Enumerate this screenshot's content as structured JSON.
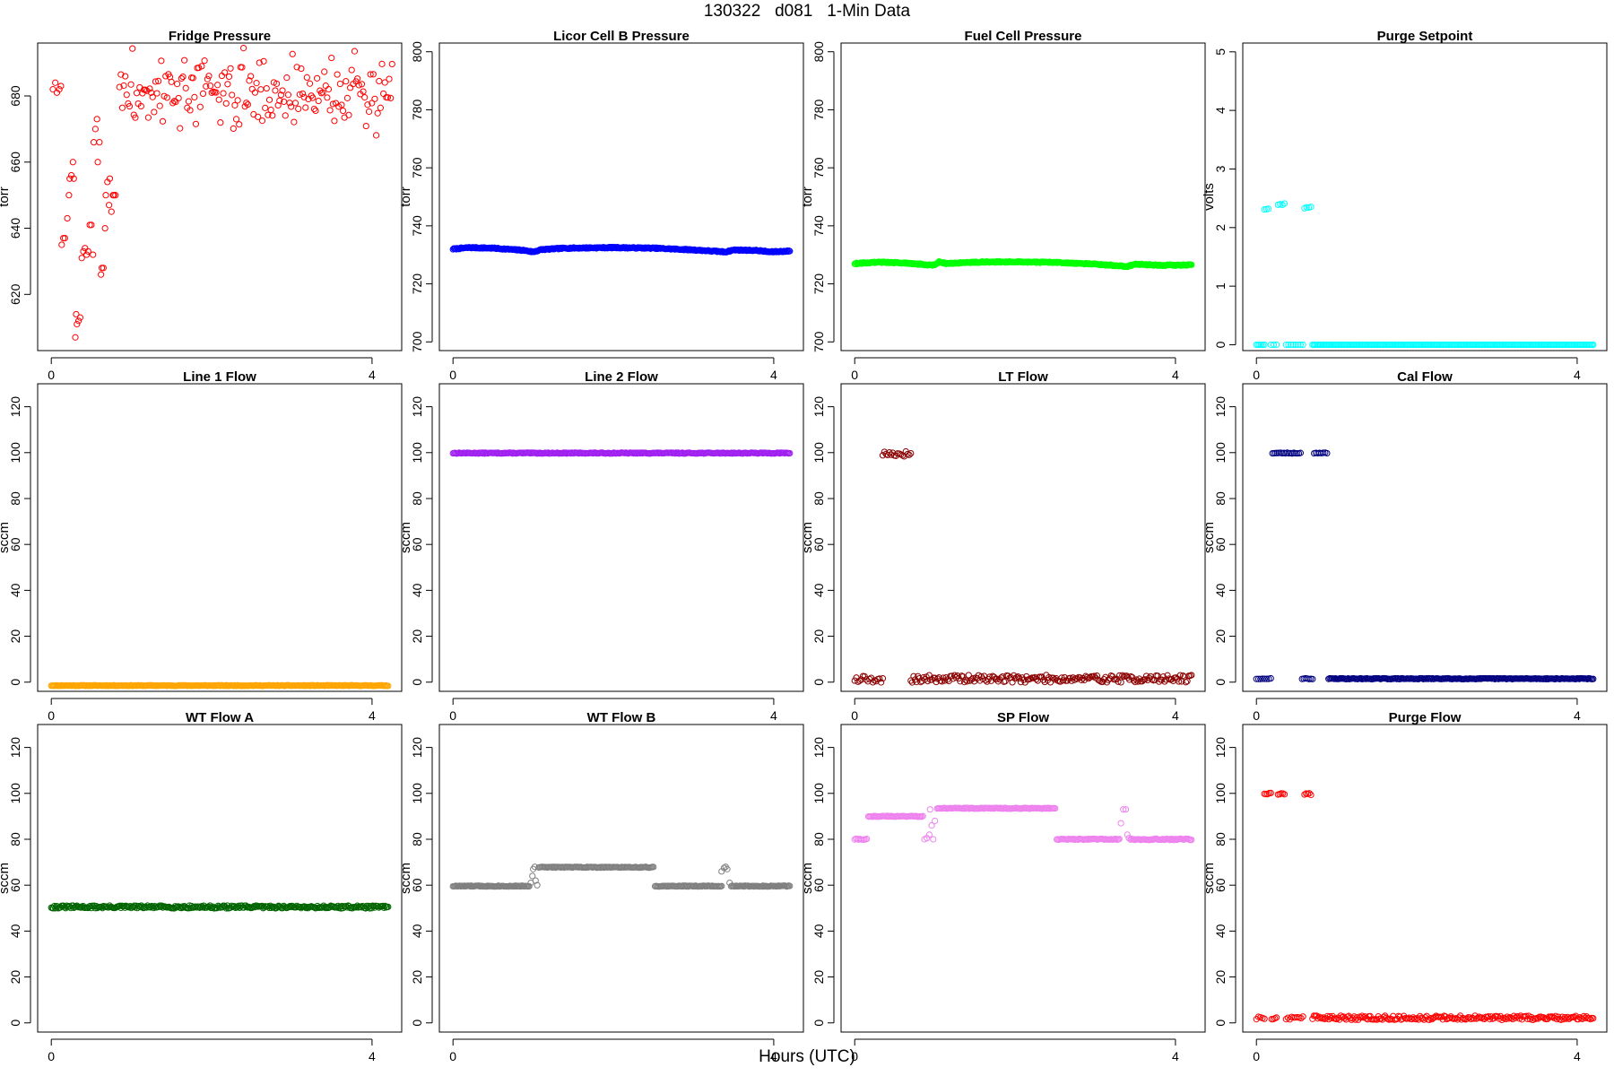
{
  "figure": {
    "title": "130322   d081   1-Min Data",
    "xlabel": "Hours (UTC)"
  },
  "chart_data": [
    {
      "type": "scatter",
      "title": "Fridge Pressure",
      "ylabel": "torr",
      "xlim": [
        -0.17,
        4.37
      ],
      "ylim": [
        603,
        696
      ],
      "xticks": [
        0,
        4
      ],
      "yticks": [
        620,
        640,
        660,
        680
      ],
      "color": "#ff0000",
      "segments": [
        {
          "model": "custom",
          "points": [
            [
              0.02,
              682
            ],
            [
              0.05,
              684
            ],
            [
              0.07,
              681
            ],
            [
              0.1,
              682
            ],
            [
              0.12,
              683
            ],
            [
              0.13,
              635
            ],
            [
              0.15,
              637
            ],
            [
              0.17,
              637
            ],
            [
              0.2,
              643
            ],
            [
              0.22,
              650
            ],
            [
              0.23,
              655
            ],
            [
              0.25,
              656
            ],
            [
              0.27,
              660
            ],
            [
              0.28,
              655
            ],
            [
              0.3,
              607
            ],
            [
              0.31,
              614
            ],
            [
              0.32,
              611
            ],
            [
              0.34,
              612
            ],
            [
              0.36,
              613
            ],
            [
              0.38,
              631
            ],
            [
              0.4,
              633
            ],
            [
              0.42,
              634
            ],
            [
              0.44,
              632
            ],
            [
              0.46,
              633
            ],
            [
              0.48,
              641
            ],
            [
              0.5,
              641
            ],
            [
              0.52,
              632
            ],
            [
              0.53,
              666
            ],
            [
              0.55,
              670
            ],
            [
              0.57,
              673
            ],
            [
              0.58,
              660
            ],
            [
              0.6,
              666
            ],
            [
              0.62,
              626
            ],
            [
              0.63,
              628
            ],
            [
              0.65,
              628
            ],
            [
              0.67,
              640
            ],
            [
              0.68,
              650
            ],
            [
              0.7,
              654
            ],
            [
              0.72,
              647
            ],
            [
              0.73,
              655
            ],
            [
              0.75,
              645
            ],
            [
              0.77,
              650
            ],
            [
              0.78,
              650
            ],
            [
              0.8,
              650
            ]
          ]
        },
        {
          "model": "scatter",
          "x0": 0.85,
          "x1": 4.25,
          "n": 190,
          "base": 681,
          "amp": 6.5,
          "seed": 3
        }
      ]
    },
    {
      "type": "scatter",
      "title": "Licor Cell B Pressure",
      "ylabel": "torr",
      "xlim": [
        -0.17,
        4.37
      ],
      "ylim": [
        697,
        803
      ],
      "xticks": [
        0,
        4
      ],
      "yticks": [
        700,
        720,
        740,
        760,
        780,
        800
      ],
      "color": "#0000ff",
      "segments": [
        {
          "model": "profile",
          "x0": 0.0,
          "x1": 4.2,
          "n": 400,
          "knots": [
            [
              0,
              732
            ],
            [
              0.2,
              732.5
            ],
            [
              0.5,
              732.3
            ],
            [
              0.9,
              731.5
            ],
            [
              1.0,
              731
            ],
            [
              1.1,
              731.8
            ],
            [
              1.4,
              732.3
            ],
            [
              2.0,
              732.5
            ],
            [
              2.5,
              732.3
            ],
            [
              3.0,
              731.7
            ],
            [
              3.4,
              731
            ],
            [
              3.5,
              731.7
            ],
            [
              3.8,
              731.5
            ],
            [
              3.95,
              731
            ],
            [
              4.2,
              731.3
            ]
          ],
          "noise": 0.2,
          "seed": 7
        }
      ]
    },
    {
      "type": "scatter",
      "title": "Fuel Cell Pressure",
      "ylabel": "torr",
      "xlim": [
        -0.17,
        4.37
      ],
      "ylim": [
        697,
        803
      ],
      "xticks": [
        0,
        4
      ],
      "yticks": [
        700,
        720,
        740,
        760,
        780,
        800
      ],
      "color": "#00ff00",
      "segments": [
        {
          "model": "profile",
          "x0": 0.0,
          "x1": 4.2,
          "n": 400,
          "knots": [
            [
              0,
              727
            ],
            [
              0.3,
              727.5
            ],
            [
              0.6,
              727.2
            ],
            [
              0.9,
              726.6
            ],
            [
              1.0,
              726.5
            ],
            [
              1.05,
              727.6
            ],
            [
              1.15,
              727
            ],
            [
              1.5,
              727.5
            ],
            [
              2.0,
              727.6
            ],
            [
              2.5,
              727.4
            ],
            [
              3.0,
              726.8
            ],
            [
              3.4,
              726
            ],
            [
              3.5,
              726.8
            ],
            [
              3.8,
              726.4
            ],
            [
              4.2,
              726.5
            ]
          ],
          "noise": 0.2,
          "seed": 9
        }
      ]
    },
    {
      "type": "scatter",
      "title": "Purge Setpoint",
      "ylabel": "volts",
      "xlim": [
        -0.17,
        4.37
      ],
      "ylim": [
        -0.1,
        5.15
      ],
      "xticks": [
        0,
        4
      ],
      "yticks": [
        0,
        1,
        2,
        3,
        4,
        5
      ],
      "color": "#00ffff",
      "segments": [
        {
          "model": "line",
          "x0": 0.0,
          "x1": 0.1,
          "n": 6,
          "value": 0,
          "noise": 0
        },
        {
          "model": "line",
          "x0": 0.1,
          "x1": 0.15,
          "n": 3,
          "value": 2.32,
          "noise": 0.02,
          "seed": 1
        },
        {
          "model": "line",
          "x0": 0.18,
          "x1": 0.25,
          "n": 3,
          "value": 0,
          "noise": 0
        },
        {
          "model": "line",
          "x0": 0.27,
          "x1": 0.35,
          "n": 4,
          "value": 2.4,
          "noise": 0.02,
          "seed": 2
        },
        {
          "model": "line",
          "x0": 0.37,
          "x1": 0.58,
          "n": 8,
          "value": 0,
          "noise": 0
        },
        {
          "model": "line",
          "x0": 0.6,
          "x1": 0.68,
          "n": 4,
          "value": 2.34,
          "noise": 0.02,
          "seed": 4
        },
        {
          "model": "line",
          "x0": 0.7,
          "x1": 4.2,
          "n": 220,
          "value": 0,
          "noise": 0
        }
      ]
    },
    {
      "type": "scatter",
      "title": "Line 1 Flow",
      "ylabel": "sccm",
      "xlim": [
        -0.17,
        4.37
      ],
      "ylim": [
        -4,
        130
      ],
      "xticks": [
        0,
        4
      ],
      "yticks": [
        0,
        20,
        40,
        60,
        80,
        100,
        120
      ],
      "color": "#ffa500",
      "segments": [
        {
          "model": "line",
          "x0": 0.0,
          "x1": 4.2,
          "n": 330,
          "value": -1.5,
          "noise": 0.15,
          "seed": 11
        }
      ]
    },
    {
      "type": "scatter",
      "title": "Line 2 Flow",
      "ylabel": "sccm",
      "xlim": [
        -0.17,
        4.37
      ],
      "ylim": [
        -4,
        130
      ],
      "xticks": [
        0,
        4
      ],
      "yticks": [
        0,
        20,
        40,
        60,
        80,
        100,
        120
      ],
      "color": "#a020f0",
      "segments": [
        {
          "model": "line",
          "x0": 0.0,
          "x1": 4.2,
          "n": 330,
          "value": 99.8,
          "noise": 0.2,
          "seed": 13
        }
      ]
    },
    {
      "type": "scatter",
      "title": "LT Flow",
      "ylabel": "sccm",
      "xlim": [
        -0.17,
        4.37
      ],
      "ylim": [
        -4,
        130
      ],
      "xticks": [
        0,
        4
      ],
      "yticks": [
        0,
        20,
        40,
        60,
        80,
        100,
        120
      ],
      "color": "#8b0000",
      "segments": [
        {
          "model": "line",
          "x0": 0.0,
          "x1": 0.35,
          "n": 18,
          "value": 1.5,
          "noise": 1.6,
          "seed": 15
        },
        {
          "model": "line",
          "x0": 0.35,
          "x1": 0.7,
          "n": 18,
          "value": 99.5,
          "noise": 1.3,
          "seed": 17
        },
        {
          "model": "line",
          "x0": 0.7,
          "x1": 4.2,
          "n": 200,
          "value": 1.5,
          "noise": 1.6,
          "seed": 19
        }
      ]
    },
    {
      "type": "scatter",
      "title": "Cal Flow",
      "ylabel": "sccm",
      "xlim": [
        -0.17,
        4.37
      ],
      "ylim": [
        -4,
        130
      ],
      "xticks": [
        0,
        4
      ],
      "yticks": [
        0,
        20,
        40,
        60,
        80,
        100,
        120
      ],
      "color": "#000080",
      "segments": [
        {
          "model": "line",
          "x0": 0.0,
          "x1": 0.18,
          "n": 8,
          "value": 1.5,
          "noise": 0.2,
          "seed": 21
        },
        {
          "model": "line",
          "x0": 0.2,
          "x1": 0.55,
          "n": 18,
          "value": 99.8,
          "noise": 0.2,
          "seed": 23
        },
        {
          "model": "line",
          "x0": 0.57,
          "x1": 0.7,
          "n": 7,
          "value": 1.5,
          "noise": 0.2,
          "seed": 25
        },
        {
          "model": "line",
          "x0": 0.72,
          "x1": 0.88,
          "n": 8,
          "value": 99.8,
          "noise": 0.2,
          "seed": 27
        },
        {
          "model": "line",
          "x0": 0.9,
          "x1": 4.2,
          "n": 230,
          "value": 1.5,
          "noise": 0.2,
          "seed": 29
        }
      ]
    },
    {
      "type": "scatter",
      "title": "WT Flow A",
      "ylabel": "sccm",
      "xlim": [
        -0.17,
        4.37
      ],
      "ylim": [
        -4,
        130
      ],
      "xticks": [
        0,
        4
      ],
      "yticks": [
        0,
        20,
        40,
        60,
        80,
        100,
        120
      ],
      "color": "#006400",
      "segments": [
        {
          "model": "line",
          "x0": 0.0,
          "x1": 4.2,
          "n": 330,
          "value": 50.5,
          "noise": 0.6,
          "seed": 31
        }
      ]
    },
    {
      "type": "scatter",
      "title": "WT Flow B",
      "ylabel": "sccm",
      "xlim": [
        -0.17,
        4.37
      ],
      "ylim": [
        -4,
        130
      ],
      "xticks": [
        0,
        4
      ],
      "yticks": [
        0,
        20,
        40,
        60,
        80,
        100,
        120
      ],
      "color": "#808080",
      "segments": [
        {
          "model": "line",
          "x0": 0.0,
          "x1": 0.95,
          "n": 80,
          "value": 59.6,
          "noise": 0.2,
          "seed": 33
        },
        {
          "model": "custom",
          "points": [
            [
              0.97,
              61
            ],
            [
              0.99,
              64
            ],
            [
              1.0,
              67
            ],
            [
              1.02,
              68
            ],
            [
              1.03,
              62
            ],
            [
              1.05,
              60
            ]
          ]
        },
        {
          "model": "line",
          "x0": 1.07,
          "x1": 2.5,
          "n": 110,
          "value": 67.8,
          "noise": 0.2,
          "seed": 35
        },
        {
          "model": "line",
          "x0": 2.52,
          "x1": 3.35,
          "n": 65,
          "value": 59.6,
          "noise": 0.2,
          "seed": 37
        },
        {
          "model": "custom",
          "points": [
            [
              3.35,
              66
            ],
            [
              3.38,
              67.5
            ],
            [
              3.4,
              68
            ],
            [
              3.42,
              67
            ],
            [
              3.45,
              61
            ]
          ]
        },
        {
          "model": "line",
          "x0": 3.47,
          "x1": 4.2,
          "n": 60,
          "value": 59.6,
          "noise": 0.2,
          "seed": 39
        }
      ]
    },
    {
      "type": "scatter",
      "title": "SP Flow",
      "ylabel": "sccm",
      "xlim": [
        -0.17,
        4.37
      ],
      "ylim": [
        -4,
        130
      ],
      "xticks": [
        0,
        4
      ],
      "yticks": [
        0,
        20,
        40,
        60,
        80,
        100,
        120
      ],
      "color": "#ee82ee",
      "segments": [
        {
          "model": "line",
          "x0": 0.0,
          "x1": 0.15,
          "n": 10,
          "value": 80,
          "noise": 0.2,
          "seed": 41
        },
        {
          "model": "line",
          "x0": 0.17,
          "x1": 0.85,
          "n": 50,
          "value": 90,
          "noise": 0.2,
          "seed": 43
        },
        {
          "model": "custom",
          "points": [
            [
              0.87,
              80
            ],
            [
              0.9,
              80.5
            ],
            [
              0.93,
              82
            ],
            [
              0.96,
              86
            ],
            [
              0.98,
              80
            ],
            [
              0.94,
              93
            ],
            [
              1.0,
              88
            ]
          ]
        },
        {
          "model": "line",
          "x0": 1.03,
          "x1": 2.5,
          "n": 115,
          "value": 93.5,
          "noise": 0.2,
          "seed": 45
        },
        {
          "model": "line",
          "x0": 2.52,
          "x1": 3.3,
          "n": 60,
          "value": 80,
          "noise": 0.2,
          "seed": 47
        },
        {
          "model": "custom",
          "points": [
            [
              3.32,
              87
            ],
            [
              3.35,
              93
            ],
            [
              3.38,
              93
            ],
            [
              3.4,
              82
            ],
            [
              3.42,
              80.5
            ]
          ]
        },
        {
          "model": "line",
          "x0": 3.44,
          "x1": 4.2,
          "n": 60,
          "value": 80,
          "noise": 0.3,
          "seed": 49
        }
      ]
    },
    {
      "type": "scatter",
      "title": "Purge Flow",
      "ylabel": "sccm",
      "xlim": [
        -0.17,
        4.37
      ],
      "ylim": [
        -4,
        130
      ],
      "xticks": [
        0,
        4
      ],
      "yticks": [
        0,
        20,
        40,
        60,
        80,
        100,
        120
      ],
      "color": "#ff0000",
      "segments": [
        {
          "model": "line",
          "x0": 0.0,
          "x1": 0.1,
          "n": 5,
          "value": 2,
          "noise": 0.8,
          "seed": 51
        },
        {
          "model": "line",
          "x0": 0.1,
          "x1": 0.18,
          "n": 5,
          "value": 100,
          "noise": 0.4,
          "seed": 53
        },
        {
          "model": "line",
          "x0": 0.19,
          "x1": 0.25,
          "n": 4,
          "value": 2,
          "noise": 0.8,
          "seed": 55
        },
        {
          "model": "line",
          "x0": 0.27,
          "x1": 0.35,
          "n": 5,
          "value": 99.7,
          "noise": 0.4,
          "seed": 57
        },
        {
          "model": "line",
          "x0": 0.37,
          "x1": 0.58,
          "n": 10,
          "value": 2,
          "noise": 0.8,
          "seed": 59
        },
        {
          "model": "line",
          "x0": 0.6,
          "x1": 0.68,
          "n": 5,
          "value": 99.7,
          "noise": 0.4,
          "seed": 61
        },
        {
          "model": "line",
          "x0": 0.7,
          "x1": 4.2,
          "n": 210,
          "value": 2.2,
          "noise": 0.9,
          "seed": 63
        }
      ]
    }
  ]
}
